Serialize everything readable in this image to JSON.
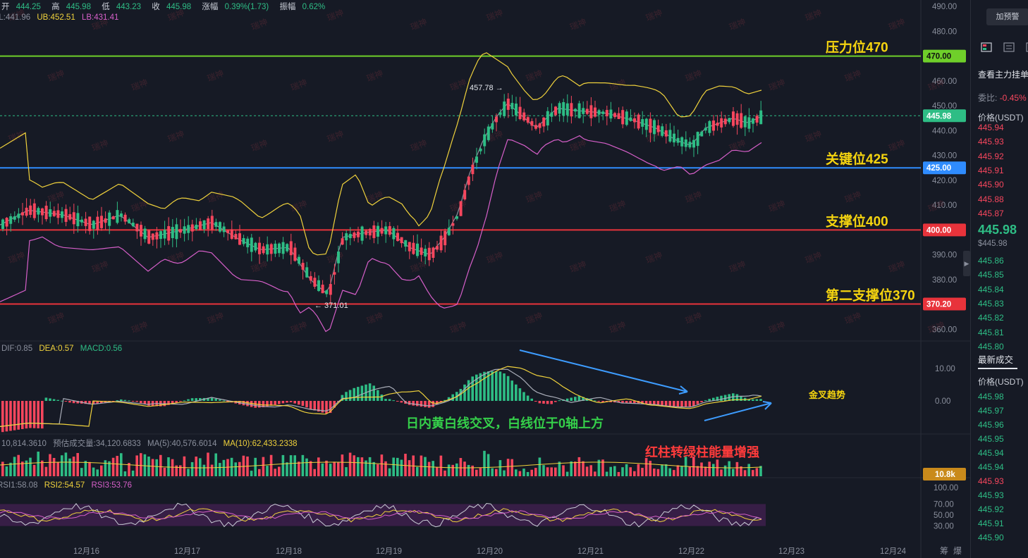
{
  "header": {
    "ohlc": [
      {
        "label": "开",
        "value": "444.25"
      },
      {
        "label": "高",
        "value": "445.98"
      },
      {
        "label": "低",
        "value": "443.23"
      },
      {
        "label": "收",
        "value": "445.98"
      },
      {
        "label": "涨幅",
        "value": "0.39%(1.73)"
      },
      {
        "label": "振幅",
        "value": "0.62%"
      }
    ],
    "boll": {
      "ll": "LL:441.96",
      "ub": "UB:452.51",
      "lb": "LB:431.41"
    },
    "macd": {
      "dif": "DIF:0.85",
      "dea": "DEA:0.57",
      "macd": "MACD:0.56"
    },
    "volume": {
      "v": "10,814.3610",
      "est": "预估成交量:34,120.6833",
      "ma5": "MA(5):40,576.6014",
      "ma10": "MA(10):62,433.2338"
    },
    "rsi": {
      "rsi1": "RSI1:58.08",
      "rsi2": "RSI2:54.57",
      "rsi3": "RSI3:53.76"
    }
  },
  "annotations": {
    "resistance": "压力位470",
    "key": "关键位425",
    "support": "支撑位400",
    "support2": "第二支撑位370",
    "macd_note": "日内黄白线交叉，白线位于0轴上方",
    "golden_cross": "金叉趋势",
    "volume_note": "红柱转绿柱能量增强",
    "high_marker": "457.78 →",
    "low_marker": "← 371.01"
  },
  "chart_data": {
    "type": "candlestick",
    "price_axis": {
      "ticks": [
        "490.00",
        "480.00",
        "470.00",
        "460.00",
        "450.00",
        "440.00",
        "430.00",
        "420.00",
        "410.00",
        "400.00",
        "390.00",
        "380.00",
        "370.00",
        "360.00"
      ],
      "ylim": [
        357,
        492
      ]
    },
    "x_ticks": [
      "12月16",
      "12月17",
      "12月18",
      "12月19",
      "12月20",
      "12月21",
      "12月22",
      "12月23",
      "12月24"
    ],
    "levels": [
      {
        "name": "压力位470",
        "value": 470.0,
        "label": "470.00",
        "color": "#6fcf2a"
      },
      {
        "name": "关键位425",
        "value": 425.0,
        "label": "425.00",
        "color": "#2f8cff"
      },
      {
        "name": "支撑位400",
        "value": 400.0,
        "label": "400.00",
        "color": "#e8333b"
      },
      {
        "name": "第二支撑位370",
        "value": 370.2,
        "label": "370.20",
        "color": "#e8333b"
      }
    ],
    "current_price": {
      "value": 445.98,
      "label": "445.98"
    },
    "high": 457.78,
    "low": 371.01,
    "macd_axis": [
      "10.00",
      "0.00"
    ],
    "volume_badge": "10.8k",
    "rsi_axis": [
      "100.00",
      "70.00",
      "50.00",
      "30.00"
    ],
    "extra_labels": [
      "筹",
      "爆"
    ]
  },
  "sidebar": {
    "alert_button": "加预警",
    "depth_title": "查看主力挂单",
    "ratio_label": "委比:",
    "ratio_value": "-0.45%",
    "price_header": "价格(USDT)",
    "asks": [
      "445.94",
      "445.93",
      "445.92",
      "445.91",
      "445.90",
      "445.88",
      "445.87"
    ],
    "last_price": "445.98",
    "last_price_sub": "$445.98",
    "bids": [
      "445.86",
      "445.85",
      "445.84",
      "445.83",
      "445.82",
      "445.81",
      "445.80"
    ],
    "trades_title": "最新成交",
    "trades_header": "价格(USDT)",
    "trades": [
      {
        "p": "445.98",
        "c": "g"
      },
      {
        "p": "445.97",
        "c": "g"
      },
      {
        "p": "445.96",
        "c": "g"
      },
      {
        "p": "445.95",
        "c": "g"
      },
      {
        "p": "445.94",
        "c": "g"
      },
      {
        "p": "445.94",
        "c": "g"
      },
      {
        "p": "445.93",
        "c": "r"
      },
      {
        "p": "445.93",
        "c": "g"
      },
      {
        "p": "445.92",
        "c": "g"
      },
      {
        "p": "445.91",
        "c": "g"
      },
      {
        "p": "445.90",
        "c": "g"
      }
    ],
    "watermark": "瑞神"
  },
  "colors": {
    "up": "#2ebd85",
    "down": "#f6465d",
    "boll_upper": "#f0d23c",
    "boll_lower": "#d65fc9",
    "mid": "#8a8f9c",
    "rsi_band": "#3b1f4a"
  }
}
